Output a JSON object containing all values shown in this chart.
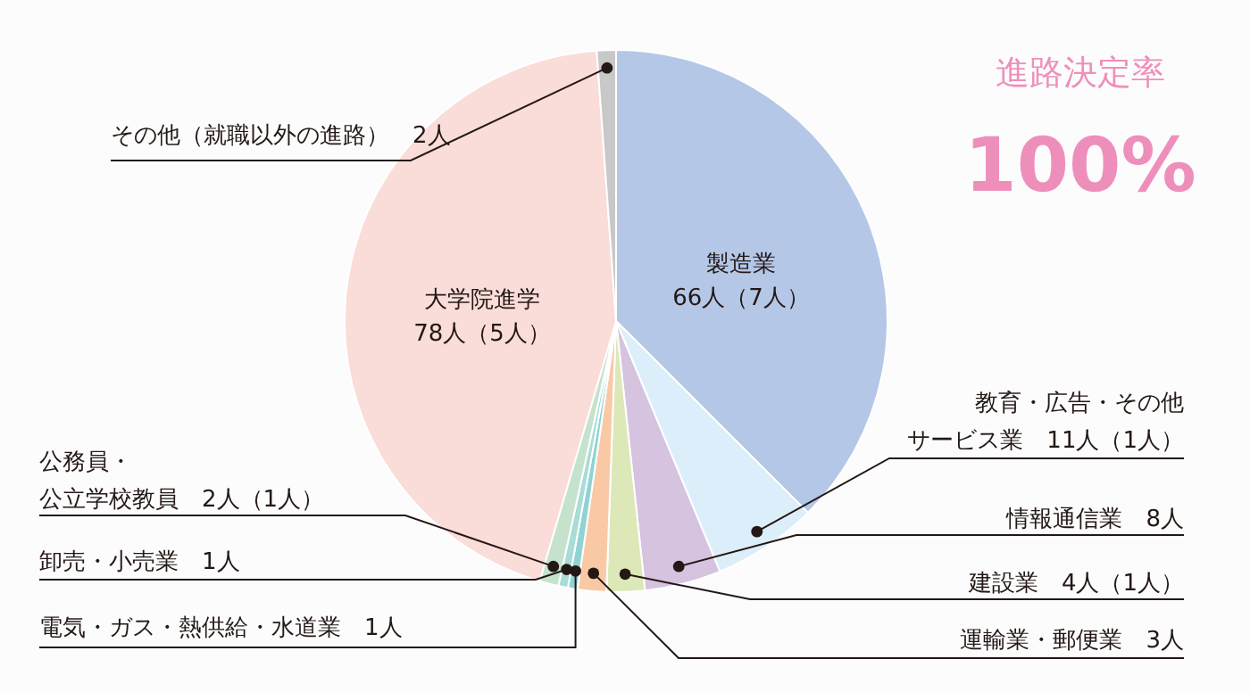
{
  "chart_data": {
    "type": "pie",
    "title": "進路決定率",
    "subtitle": "100%",
    "categories": [
      "製造業",
      "教育・広告・その他サービス業",
      "情報通信業",
      "建設業",
      "運輸業・郵便業",
      "電気・ガス・熱供給・水道業",
      "卸売・小売業",
      "公務員・公立学校教員",
      "大学院進学",
      "その他（就職以外の進路）"
    ],
    "values": [
      66,
      11,
      8,
      4,
      3,
      1,
      1,
      2,
      78,
      2
    ],
    "value_labels": [
      "66人（7人）",
      "11人（1人）",
      "8人",
      "4人（1人）",
      "3人",
      "1人",
      "1人",
      "2人（1人）",
      "78人（5人）",
      "2人"
    ],
    "colors": [
      "#b4c7e7",
      "#dceefa",
      "#d5c3e0",
      "#dce8b8",
      "#f9c9a6",
      "#8fd3d3",
      "#a8dcd8",
      "#c5e3cc",
      "#fadcd8",
      "#c8c8c8"
    ]
  }
}
